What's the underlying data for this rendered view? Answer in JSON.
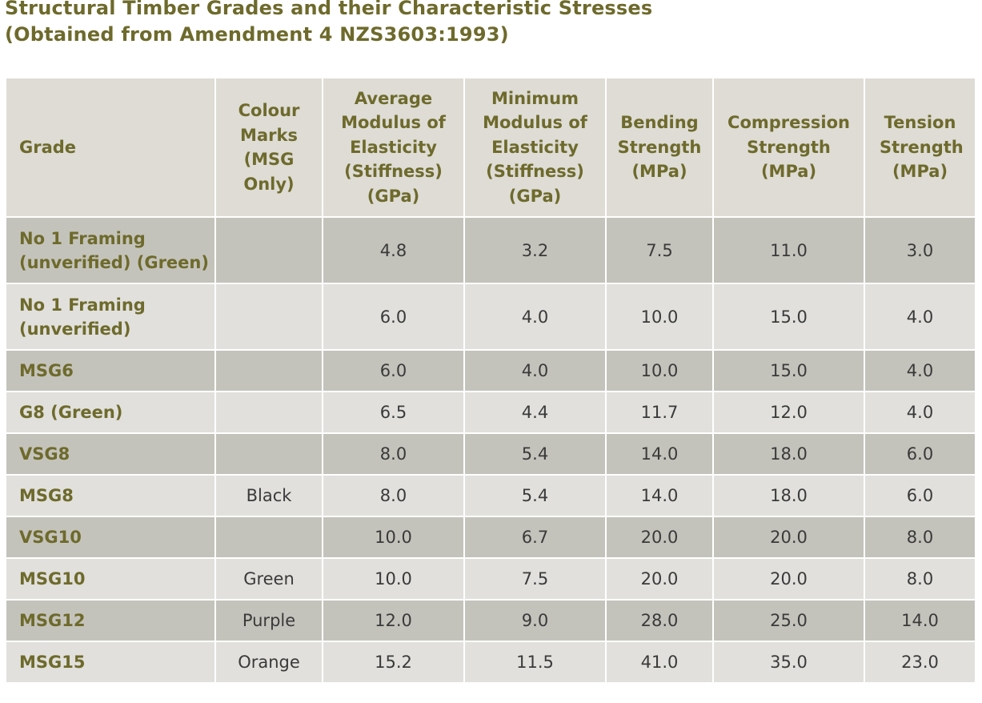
{
  "title_line1": "Structural Timber Grades and their Characteristic Stresses",
  "title_line2": "(Obtained from Amendment 4 NZS3603:1993)",
  "columns": [
    "Grade",
    "Colour Marks (MSG Only)",
    "Average Modulus of Elasticity (Stiffness) (GPa)",
    "Minimum Modulus of Elasticity (Stiffness) (GPa)",
    "Bending Strength (MPa)",
    "Compression Strength (MPa)",
    "Tension Strength (MPa)"
  ],
  "rows": [
    {
      "grade": "No 1 Framing (unverified) (Green)",
      "colour": "",
      "avg_moe": "4.8",
      "min_moe": "3.2",
      "bending": "7.5",
      "compression": "11.0",
      "tension": "3.0"
    },
    {
      "grade": "No 1 Framing (unverified)",
      "colour": "",
      "avg_moe": "6.0",
      "min_moe": "4.0",
      "bending": "10.0",
      "compression": "15.0",
      "tension": "4.0"
    },
    {
      "grade": "MSG6",
      "colour": "",
      "avg_moe": "6.0",
      "min_moe": "4.0",
      "bending": "10.0",
      "compression": "15.0",
      "tension": "4.0"
    },
    {
      "grade": "G8 (Green)",
      "colour": "",
      "avg_moe": "6.5",
      "min_moe": "4.4",
      "bending": "11.7",
      "compression": "12.0",
      "tension": "4.0"
    },
    {
      "grade": "VSG8",
      "colour": "",
      "avg_moe": "8.0",
      "min_moe": "5.4",
      "bending": "14.0",
      "compression": "18.0",
      "tension": "6.0"
    },
    {
      "grade": "MSG8",
      "colour": "Black",
      "avg_moe": "8.0",
      "min_moe": "5.4",
      "bending": "14.0",
      "compression": "18.0",
      "tension": "6.0"
    },
    {
      "grade": "VSG10",
      "colour": "",
      "avg_moe": "10.0",
      "min_moe": "6.7",
      "bending": "20.0",
      "compression": "20.0",
      "tension": "8.0"
    },
    {
      "grade": "MSG10",
      "colour": "Green",
      "avg_moe": "10.0",
      "min_moe": "7.5",
      "bending": "20.0",
      "compression": "20.0",
      "tension": "8.0"
    },
    {
      "grade": "MSG12",
      "colour": "Purple",
      "avg_moe": "12.0",
      "min_moe": "9.0",
      "bending": "28.0",
      "compression": "25.0",
      "tension": "14.0"
    },
    {
      "grade": "MSG15",
      "colour": "Orange",
      "avg_moe": "15.2",
      "min_moe": "11.5",
      "bending": "41.0",
      "compression": "35.0",
      "tension": "23.0"
    }
  ],
  "colors": {
    "heading_text": "#6e6a2c",
    "header_background": "#dedcd5",
    "row_dark": "#c4c3bb",
    "row_light": "#e1e0dc",
    "value_text": "#3a3a3a"
  }
}
